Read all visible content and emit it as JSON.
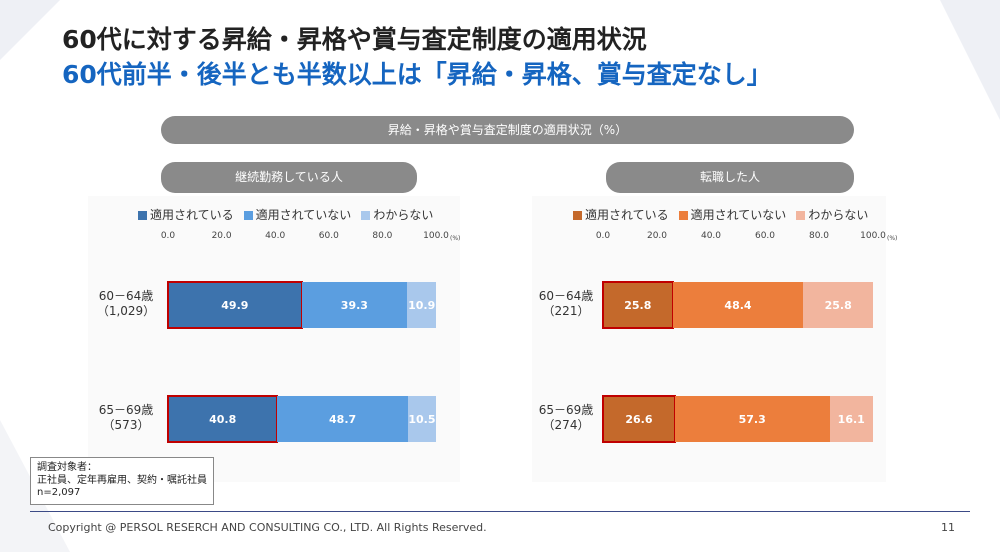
{
  "header": {
    "title": "60代に対する昇給・昇格や賞与査定制度の適用状況",
    "headline": "60代前半・後半とも半数以上は「昇給・昇格、賞与査定なし」"
  },
  "chart_caption": "昇給・昇格や賞与査定制度の適用状況（%）",
  "chart_data": [
    {
      "type": "bar",
      "stacked": true,
      "orientation": "horizontal",
      "title": "継続勤務している人",
      "categories": [
        "60－64歳（1,029）",
        "65－69歳（573）"
      ],
      "category_lines": [
        [
          "60－64歳",
          "（1,029）"
        ],
        [
          "65－69歳",
          "（573）"
        ]
      ],
      "series": [
        {
          "name": "適用されている",
          "values": [
            49.9,
            40.8
          ],
          "color": "#3d73ad"
        },
        {
          "name": "適用されていない",
          "values": [
            39.3,
            48.7
          ],
          "color": "#5b9ee0"
        },
        {
          "name": "わからない",
          "values": [
            10.9,
            10.5
          ],
          "color": "#a9c8ec"
        }
      ],
      "xlim": [
        0,
        100
      ],
      "ticks": [
        "0.0",
        "20.0",
        "40.0",
        "60.0",
        "80.0",
        "100.0"
      ],
      "unit": "(%)",
      "legend_position": "top",
      "highlighted_series": "適用されている"
    },
    {
      "type": "bar",
      "stacked": true,
      "orientation": "horizontal",
      "title": "転職した人",
      "categories": [
        "60－64歳（221）",
        "65－69歳（274）"
      ],
      "category_lines": [
        [
          "60－64歳",
          "（221）"
        ],
        [
          "65－69歳",
          "（274）"
        ]
      ],
      "series": [
        {
          "name": "適用されている",
          "values": [
            25.8,
            26.6
          ],
          "color": "#c4692b"
        },
        {
          "name": "適用されていない",
          "values": [
            48.4,
            57.3
          ],
          "color": "#ec7e3c"
        },
        {
          "name": "わからない",
          "values": [
            25.8,
            16.1
          ],
          "color": "#f2b59e"
        }
      ],
      "xlim": [
        0,
        100
      ],
      "ticks": [
        "0.0",
        "20.0",
        "40.0",
        "60.0",
        "80.0",
        "100.0"
      ],
      "unit": "(%)",
      "legend_position": "top",
      "highlighted_series": "適用されている"
    }
  ],
  "note": {
    "line1": "調査対象者：",
    "line2": "正社員、定年再雇用、契約・嘱託社員",
    "line3": "n=2,097"
  },
  "footer": {
    "copyright": "Copyright @ PERSOL RESERCH AND CONSULTING CO., LTD. All Rights Reserved.",
    "page_number": "11"
  }
}
